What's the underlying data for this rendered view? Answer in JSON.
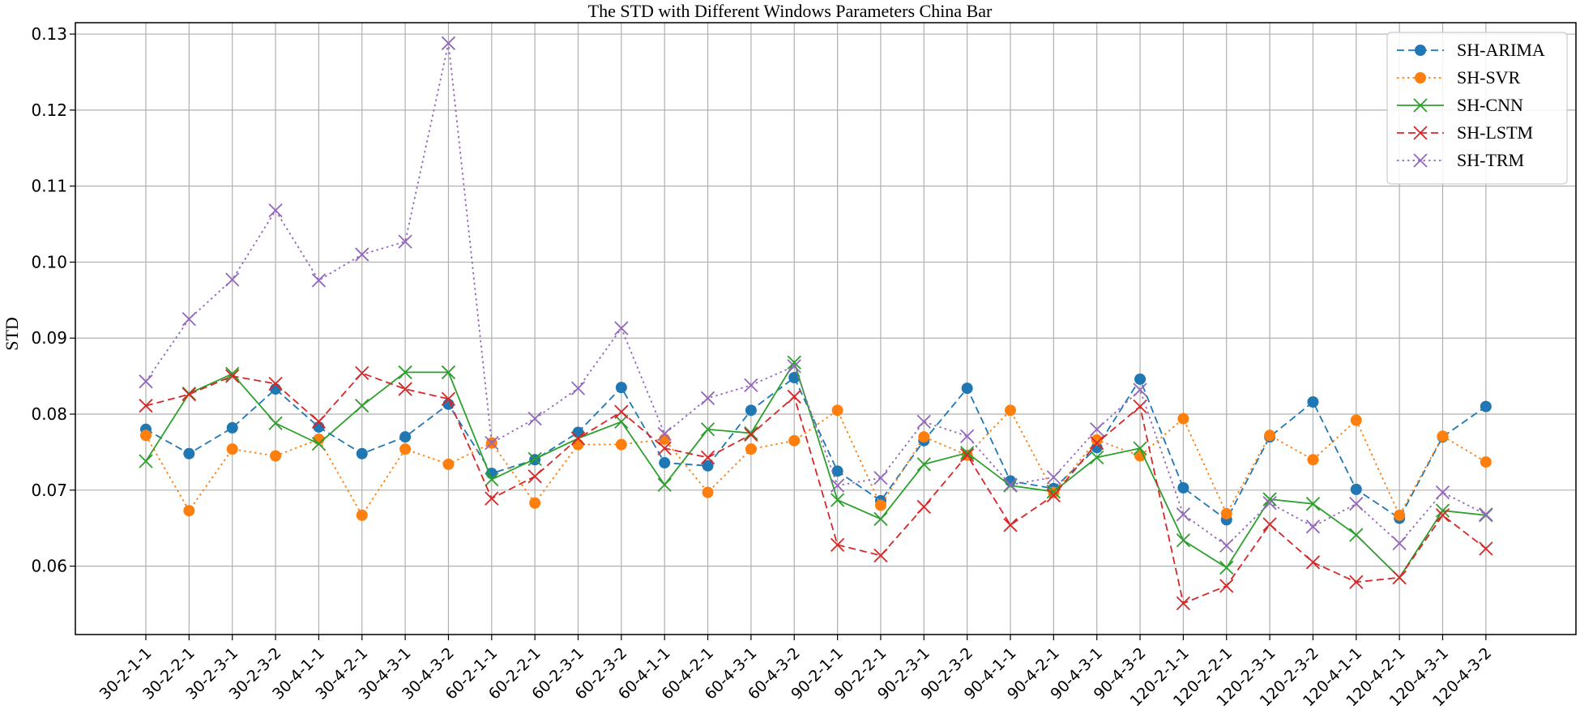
{
  "chart_data": {
    "type": "line",
    "title": "The STD with Different Windows Parameters China Bar",
    "xlabel": "",
    "ylabel": "STD",
    "ylim": [
      0.051,
      0.1315
    ],
    "yticks": [
      "0.06",
      "0.07",
      "0.08",
      "0.09",
      "0.10",
      "0.11",
      "0.12",
      "0.13"
    ],
    "grid": true,
    "legend_position": "top-right",
    "categories": [
      "30-2-1-1",
      "30-2-2-1",
      "30-2-3-1",
      "30-2-3-2",
      "30-4-1-1",
      "30-4-2-1",
      "30-4-3-1",
      "30-4-3-2",
      "60-2-1-1",
      "60-2-2-1",
      "60-2-3-1",
      "60-2-3-2",
      "60-4-1-1",
      "60-4-2-1",
      "60-4-3-1",
      "60-4-3-2",
      "90-2-1-1",
      "90-2-2-1",
      "90-2-3-1",
      "90-2-3-2",
      "90-4-1-1",
      "90-4-2-1",
      "90-4-3-1",
      "90-4-3-2",
      "120-2-1-1",
      "120-2-2-1",
      "120-2-3-1",
      "120-2-3-2",
      "120-4-1-1",
      "120-4-2-1",
      "120-4-3-1",
      "120-4-3-2"
    ],
    "series": [
      {
        "name": "SH-ARIMA",
        "color": "#1f77b4",
        "dash": "dashed",
        "marker": "circle",
        "values": [
          0.078,
          0.0748,
          0.0782,
          0.0833,
          0.0783,
          0.0748,
          0.077,
          0.0813,
          0.0722,
          0.074,
          0.0776,
          0.0835,
          0.0736,
          0.0732,
          0.0805,
          0.0848,
          0.0725,
          0.0686,
          0.0765,
          0.0834,
          0.0712,
          0.0702,
          0.0756,
          0.0846,
          0.0703,
          0.0661,
          0.077,
          0.0816,
          0.0701,
          0.0663,
          0.077,
          0.081
        ]
      },
      {
        "name": "SH-SVR",
        "color": "#ff7f0e",
        "dash": "dotted",
        "marker": "circle",
        "values": [
          0.0772,
          0.0673,
          0.0754,
          0.0745,
          0.0767,
          0.0667,
          0.0754,
          0.0734,
          0.0762,
          0.0683,
          0.076,
          0.076,
          0.0767,
          0.0697,
          0.0754,
          0.0765,
          0.0805,
          0.068,
          0.077,
          0.0746,
          0.0805,
          0.0697,
          0.0766,
          0.0745,
          0.0794,
          0.0669,
          0.0772,
          0.074,
          0.0792,
          0.0667,
          0.0771,
          0.0737
        ]
      },
      {
        "name": "SH-CNN",
        "color": "#2ca02c",
        "dash": "solid",
        "marker": "x",
        "values": [
          0.0738,
          0.0827,
          0.0853,
          0.0788,
          0.0761,
          0.0811,
          0.0855,
          0.0855,
          0.0714,
          0.0741,
          0.0768,
          0.079,
          0.0707,
          0.078,
          0.0775,
          0.0868,
          0.0687,
          0.0662,
          0.0734,
          0.0749,
          0.0706,
          0.0698,
          0.0743,
          0.0755,
          0.0634,
          0.0598,
          0.0688,
          0.0682,
          0.0641,
          0.0585,
          0.0673,
          0.0667
        ]
      },
      {
        "name": "SH-LSTM",
        "color": "#d62728",
        "dash": "dashed",
        "marker": "x",
        "values": [
          0.0811,
          0.0826,
          0.085,
          0.084,
          0.079,
          0.0854,
          0.0833,
          0.082,
          0.0689,
          0.0718,
          0.0768,
          0.0803,
          0.0755,
          0.0743,
          0.0773,
          0.0823,
          0.0628,
          0.0614,
          0.0678,
          0.0746,
          0.0654,
          0.0693,
          0.0762,
          0.081,
          0.0551,
          0.0574,
          0.0655,
          0.0605,
          0.0579,
          0.0585,
          0.0667,
          0.0623
        ]
      },
      {
        "name": "SH-TRM",
        "color": "#9467bd",
        "dash": "dotted",
        "marker": "x",
        "values": [
          0.0843,
          0.0925,
          0.0977,
          0.1068,
          0.0976,
          0.101,
          0.1027,
          0.1288,
          0.0762,
          0.0794,
          0.0834,
          0.0913,
          0.0774,
          0.0821,
          0.0838,
          0.0863,
          0.0706,
          0.0716,
          0.079,
          0.0771,
          0.0707,
          0.0717,
          0.078,
          0.0832,
          0.0668,
          0.0627,
          0.0683,
          0.0652,
          0.0682,
          0.063,
          0.0697,
          0.0668
        ]
      }
    ]
  }
}
